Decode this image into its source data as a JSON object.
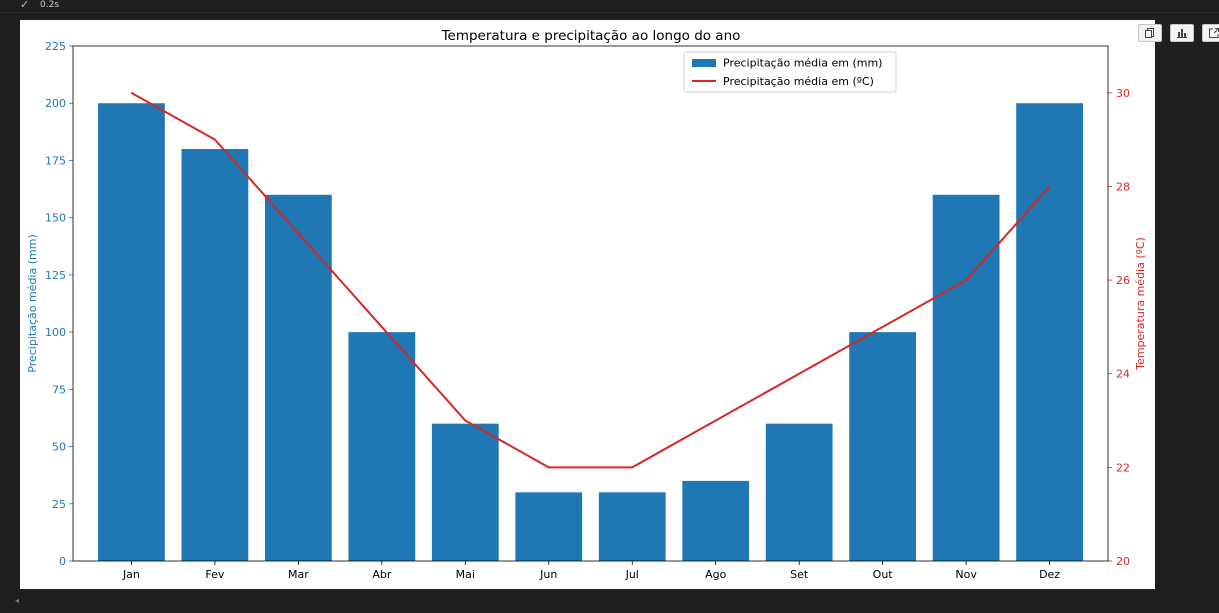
{
  "cell": {
    "status_icon": "check-icon",
    "execution_time": "0.2s"
  },
  "toolbar": {
    "buttons": [
      "copy-icon",
      "chart-icon",
      "expand-icon"
    ]
  },
  "colors": {
    "bars": "#1f77b4",
    "line": "#d62728",
    "background": "#1f1f1f"
  },
  "chart_data": {
    "type": "bar",
    "title": "Temperatura e precipitação ao longo do ano",
    "categories": [
      "Jan",
      "Fev",
      "Mar",
      "Abr",
      "Mai",
      "Jun",
      "Jul",
      "Ago",
      "Set",
      "Out",
      "Nov",
      "Dez"
    ],
    "series": [
      {
        "name": "Precipitação média em (mm)",
        "type": "bar",
        "axis": "left",
        "values": [
          200,
          180,
          160,
          100,
          60,
          30,
          30,
          35,
          60,
          100,
          160,
          200
        ]
      },
      {
        "name": "Precipitação média em (ºC)",
        "type": "line",
        "axis": "right",
        "values": [
          30,
          29,
          27,
          25,
          23,
          22,
          22,
          23,
          24,
          25,
          26,
          28
        ]
      }
    ],
    "ylabel": "Precipitação média (mm)",
    "y2label": "Temperatura média (ºC)",
    "ylim": [
      0,
      225
    ],
    "y2lim": [
      20,
      31
    ],
    "yticks": [
      0,
      25,
      50,
      75,
      100,
      125,
      150,
      175,
      200,
      225
    ],
    "y2ticks": [
      20,
      22,
      24,
      26,
      28,
      30
    ],
    "legend_position": "top-center",
    "grid": false
  }
}
